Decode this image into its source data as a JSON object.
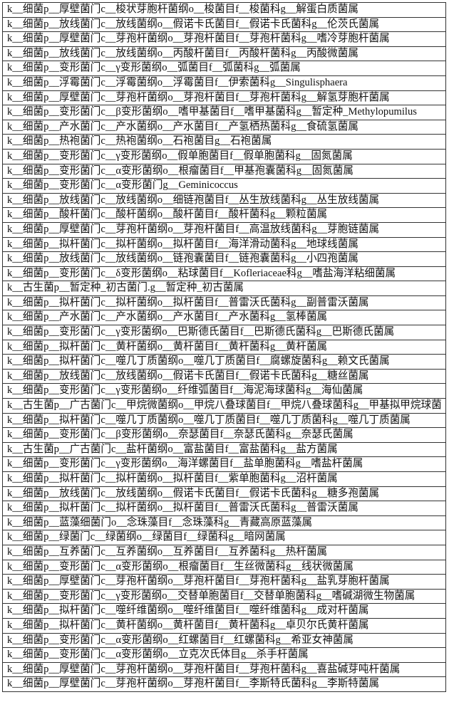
{
  "table": {
    "rows": [
      "k__细菌p__厚壁菌门c__梭状芽胞杆菌纲o__梭菌目f__梭菌科g__解蛋白质菌属",
      "k__细菌p__放线菌门c__放线菌纲o__假诺卡氏菌目f__假诺卡氏菌科g__伦茨氏菌属",
      "k__细菌p__厚壁菌门c__芽孢杆菌纲o__芽孢杆菌目f__芽孢杆菌科g__嗜冷芽胞杆菌属",
      "k__细菌p__放线菌门c__放线菌纲o__丙酸杆菌目f__丙酸杆菌科g__丙酸微菌属",
      "k__细菌p__变形菌门c__γ变形菌纲o__弧菌目f__弧菌科g__弧菌属",
      "k__细菌p__浮霉菌门c__浮霉菌纲o__浮霉菌目f__伊索菌科g__Singulisphaera",
      "k__细菌p__厚壁菌门c__芽孢杆菌纲o__芽孢杆菌目f__芽孢杆菌科g__解氢芽胞杆菌属",
      "k__细菌p__变形菌门c__β变形菌纲o__嗜甲基菌目f__嗜甲基菌科g__暂定种_Methylopumilus",
      "k__细菌p__产水菌门c__产水菌纲o__产水菌目f__产氢栖热菌科g__食硫氢菌属",
      "k__细菌p__热袍菌门c__热袍菌纲o__石袍菌目g__石袍菌属",
      "k__细菌p__变形菌门c__γ变形菌纲o__假单胞菌目f__假单胞菌科g__固氮菌属",
      "k__细菌p__变形菌门c__α变形菌纲o__根瘤菌目f__甲基孢囊菌科g__固氮菌属",
      "k__细菌p__变形菌门c__α变形菌门g__Geminicoccus",
      "k__细菌p__放线菌门c__放线菌纲o__细链孢菌目f__丛生放线菌科g__丛生放线菌属",
      "k__细菌p__酸杆菌门c__酸杆菌纲o__酸杆菌目f__酸杆菌科g__颗粒菌属",
      "k__细菌p__厚壁菌门c__芽孢杆菌纲o__芽孢杆菌目f__高温放线菌科g__芽胞链菌属",
      "k__细菌p__拟杆菌门c__拟杆菌纲o__拟杆菌目f__海洋滑动菌科g__地球线菌属",
      "k__细菌p__放线菌门c__放线菌纲o__链孢囊菌目f__链孢囊菌科g__小四孢菌属",
      "k__细菌p__变形菌门c__δ变形菌纲o__粘球菌目f__Kofleriaceae科g__嗜盐海洋粘细菌属",
      "k__古生菌p__暂定种_初古菌门.g__暂定种_初古菌属",
      "k__细菌p__拟杆菌门c__拟杆菌纲o__拟杆菌目f__普雷沃氏菌科g__副普雷沃菌属",
      "k__细菌p__产水菌门c__产水菌纲o__产水菌目f__产水菌科g__氢棒菌属",
      "k__细菌p__变形菌门c__γ变形菌纲o__巴斯德氏菌目f__巴斯德氏菌科g__巴斯德氏菌属",
      "k__细菌p__拟杆菌门c__黄杆菌纲o__黄杆菌目f__黄杆菌科g__黄杆菌属",
      "k__细菌p__拟杆菌门c__噬几丁质菌纲o__噬几丁质菌目f__腐螺旋菌科g__赖文氏菌属",
      "k__细菌p__放线菌门c__放线菌纲o__假诺卡氏菌目f__假诺卡氏菌科g__糖丝菌属",
      "k__细菌p__变形菌门c__γ变形菌纲o__纤维弧菌目f__海泥海球菌科g__海仙菌属",
      "k__古生菌p__广古菌门c__甲烷微菌纲o__甲烷八叠球菌目f__甲烷八叠球菌科g__甲基拟甲烷球菌",
      "k__细菌p__拟杆菌门c__噬几丁质菌纲o__噬几丁质菌目f__噬几丁质菌科g__噬几丁质菌属",
      "k__细菌p__变形菌门c__β变形菌纲o__奈瑟菌目f__奈瑟氏菌科g__奈瑟氏菌属",
      "k__古生菌p__广古菌门c__盐杆菌纲o__富盐菌目f__富盐菌科g__盐方菌属",
      "k__细菌p__变形菌门c__γ变形菌纲o__海洋螺菌目f__盐单胞菌科g__嗜盐杆菌属",
      "k__细菌p__拟杆菌门c__拟杆菌纲o__拟杆菌目f__紫单胞菌科g__沼杆菌属",
      "k__细菌p__放线菌门c__放线菌纲o__假诺卡氏菌目f__假诺卡氏菌科g__糖多孢菌属",
      "k__细菌p__拟杆菌门c__拟杆菌纲o__拟杆菌目f__普雷沃氏菌科g__普雷沃菌属",
      "k__细菌p__蓝藻细菌门o__念珠藻目f__念珠藻科g__青藏高原蓝藻属",
      "k__细菌p__绿菌门c__绿菌纲o__绿菌目f__绿菌科g__暗网菌属",
      "k__细菌p__互养菌门c__互养菌纲o__互养菌目f__互养菌科g__热杆菌属",
      "k__细菌p__变形菌门c__α变形菌纲o__根瘤菌目f__生丝微菌科g__线状微菌属",
      "k__细菌p__厚壁菌门c__芽孢杆菌纲o__芽孢杆菌目f__芽孢杆菌科g__盐乳芽胞杆菌属",
      "k__细菌p__变形菌门c__γ变形菌纲o__交替单胞菌目f__交替单胞菌科g__嗜碱湖微生物菌属",
      "k__细菌p__拟杆菌门c__噬纤维菌纲o__噬纤维菌目f__噬纤维菌科g__成对杆菌属",
      "k__细菌p__拟杆菌门c__黄杆菌纲o__黄杆菌目f__黄杆菌科g__卓贝尔氏黄杆菌属",
      "k__细菌p__变形菌门c__α变形菌纲o__红螺菌目f__红螺菌科g__希亚女神菌属",
      "k__细菌p__变形菌门c__α变形菌纲o__立克次氏体目g__杀手杆菌属",
      "k__细菌p__厚壁菌门c__芽孢杆菌纲o__芽孢杆菌目f__芽孢杆菌科g__喜盐碱芽吨杆菌属",
      "k__细菌p__厚壁菌门c__芽孢杆菌纲o__芽孢杆菌目f__李斯特氏菌科g__李斯特菌属"
    ]
  }
}
